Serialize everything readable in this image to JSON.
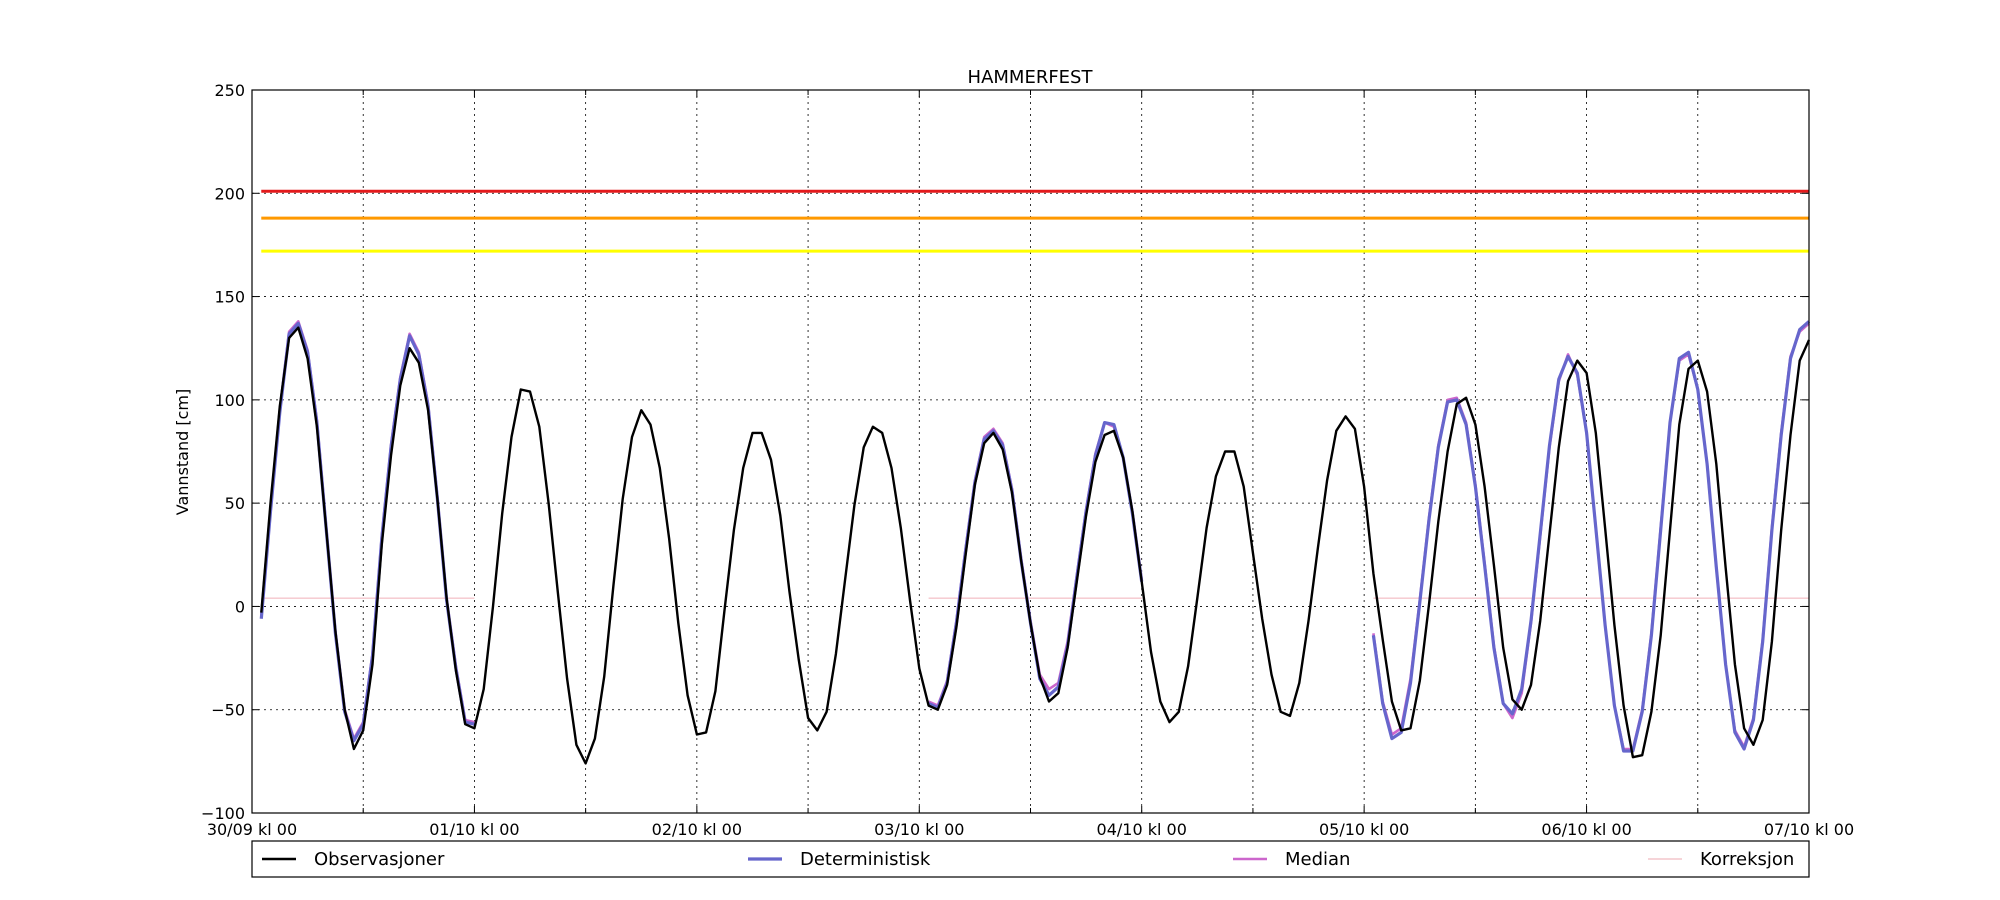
{
  "chart_data": {
    "type": "line",
    "title": "HAMMERFEST",
    "xlabel": "",
    "ylabel": "Vannstand [cm]",
    "x_unit": "hours since 30/09 kl 00",
    "xlim": [
      0,
      168
    ],
    "ylim": [
      -100,
      250
    ],
    "y_ticks": [
      -100,
      -50,
      0,
      50,
      100,
      150,
      200,
      250
    ],
    "x_ticks": [
      {
        "hour": 0,
        "label": "30/09 kl 00"
      },
      {
        "hour": 24,
        "label": "01/10 kl 00"
      },
      {
        "hour": 48,
        "label": "02/10 kl 00"
      },
      {
        "hour": 72,
        "label": "03/10 kl 00"
      },
      {
        "hour": 96,
        "label": "04/10 kl 00"
      },
      {
        "hour": 120,
        "label": "05/10 kl 00"
      },
      {
        "hour": 144,
        "label": "06/10 kl 00"
      },
      {
        "hour": 168,
        "label": "07/10 kl 00"
      }
    ],
    "x_minor_grid_hours": [
      12,
      36,
      60,
      84,
      108,
      132,
      156
    ],
    "grid": true,
    "legend_position": "below",
    "threshold_lines": [
      {
        "value": 201,
        "color": "#e31a1c"
      },
      {
        "value": 188,
        "color": "#ff9900"
      },
      {
        "value": 172,
        "color": "#ffff00"
      }
    ],
    "series": [
      {
        "name": "Observasjoner",
        "color": "#000000",
        "x": [
          1,
          2,
          3,
          4,
          5,
          6,
          7,
          8,
          9,
          10,
          11,
          12,
          13,
          14,
          15,
          16,
          17,
          18,
          19,
          20,
          21,
          22,
          23,
          24,
          25,
          26,
          27,
          28,
          29,
          30,
          31,
          32,
          33,
          34,
          35,
          36,
          37,
          38,
          39,
          40,
          41,
          42,
          43,
          44,
          45,
          46,
          47,
          48,
          49,
          50,
          51,
          52,
          53,
          54,
          55,
          56,
          57,
          58,
          59,
          60,
          61,
          62,
          63,
          64,
          65,
          66,
          67,
          68,
          69,
          70,
          71,
          72,
          73,
          74,
          75,
          76,
          77,
          78,
          79,
          80,
          81,
          82,
          83,
          84,
          85,
          86,
          87,
          88,
          89,
          90,
          91,
          92,
          93,
          94,
          95,
          96,
          97,
          98,
          99,
          100,
          101,
          102,
          103,
          104,
          105,
          106,
          107,
          108,
          109,
          110,
          111,
          112,
          113,
          114,
          115,
          116,
          117,
          118,
          119,
          120,
          121,
          122,
          123,
          124,
          125,
          126,
          127,
          128,
          129,
          130,
          131,
          132,
          133,
          134,
          135,
          136,
          137,
          138,
          139,
          140,
          141,
          142,
          143,
          144,
          145,
          146,
          147,
          148,
          149,
          150,
          151,
          152,
          153,
          154,
          155,
          156,
          157,
          158,
          159,
          160,
          161,
          162,
          163,
          164,
          165,
          166,
          167,
          168
        ],
        "values": [
          -3,
          50,
          97,
          130,
          135,
          120,
          87,
          38,
          -12,
          -50,
          -69,
          -60,
          -28,
          30,
          73,
          107,
          125,
          118,
          95,
          52,
          4,
          -31,
          -57,
          -59,
          -40,
          0,
          45,
          82,
          105,
          104,
          87,
          50,
          7,
          -35,
          -67,
          -76,
          -64,
          -34,
          10,
          52,
          82,
          95,
          88,
          67,
          33,
          -8,
          -43,
          -62,
          -61,
          -41,
          -1,
          37,
          67,
          84,
          84,
          71,
          44,
          7,
          -26,
          -54,
          -60,
          -51,
          -23,
          13,
          49,
          77,
          87,
          84,
          67,
          38,
          3,
          -30,
          -48,
          -50,
          -38,
          -10,
          25,
          59,
          79,
          84,
          76,
          55,
          22,
          -8,
          -34,
          -46,
          -42,
          -20,
          12,
          44,
          70,
          83,
          85,
          72,
          46,
          12,
          -22,
          -46,
          -56,
          -51,
          -29,
          4,
          38,
          63,
          75,
          75,
          58,
          26,
          -6,
          -33,
          -51,
          -53,
          -37,
          -7,
          28,
          61,
          85,
          92,
          86,
          58,
          16,
          -16,
          -46,
          -60,
          -59,
          -36,
          1,
          41,
          75,
          98,
          101,
          88,
          58,
          20,
          -20,
          -45,
          -50,
          -38,
          -7,
          35,
          77,
          109,
          119,
          113,
          84,
          38,
          -9,
          -48,
          -73,
          -72,
          -51,
          -14,
          37,
          88,
          115,
          119,
          104,
          69,
          19,
          -28,
          -59,
          -67,
          -55,
          -17,
          37,
          83,
          119,
          129
        ]
      },
      {
        "name": "Deterministisk",
        "color": "#6666cc",
        "segments": [
          {
            "x": [
              1,
              2,
              3,
              4,
              5,
              6,
              7,
              8,
              9,
              10,
              11,
              12,
              13,
              14,
              15,
              16,
              17,
              18,
              19,
              20,
              21,
              22,
              23,
              24
            ],
            "values": [
              -6,
              46,
              94,
              132,
              137,
              123,
              89,
              38,
              -13,
              -51,
              -65,
              -57,
              -24,
              33,
              77,
              110,
              131,
              122,
              97,
              52,
              3,
              -30,
              -56,
              -57
            ]
          },
          {
            "x": [
              73,
              74,
              75,
              76,
              77,
              78,
              79,
              80,
              81,
              82,
              83,
              84,
              85,
              86,
              87,
              88,
              89,
              90,
              91,
              92,
              93,
              94,
              95,
              96
            ],
            "values": [
              -47,
              -49,
              -37,
              -8,
              27,
              60,
              81,
              85,
              78,
              56,
              22,
              -8,
              -35,
              -43,
              -39,
              -19,
              14,
              46,
              73,
              89,
              88,
              72,
              45,
              12
            ]
          },
          {
            "x": [
              121,
              122,
              123,
              124,
              125,
              126,
              127,
              128,
              129,
              130,
              131,
              132,
              133,
              134,
              135,
              136,
              137,
              138,
              139,
              140,
              141,
              142,
              143,
              144,
              145,
              146,
              147,
              148,
              149,
              150,
              151,
              152,
              153,
              154,
              155,
              156,
              157,
              158,
              159,
              160,
              161,
              162,
              163,
              164,
              165,
              166,
              167,
              168
            ],
            "values": [
              -14,
              -47,
              -64,
              -61,
              -37,
              2,
              42,
              77,
              99,
              100,
              88,
              58,
              20,
              -20,
              -47,
              -52,
              -40,
              -7,
              35,
              78,
              110,
              121,
              113,
              84,
              38,
              -9,
              -48,
              -70,
              -70,
              -51,
              -14,
              37,
              89,
              120,
              123,
              105,
              69,
              19,
              -28,
              -61,
              -69,
              -55,
              -17,
              37,
              83,
              120,
              134,
              138
            ]
          }
        ]
      },
      {
        "name": "Median",
        "color": "#cc66cc",
        "segments": [
          {
            "x": [
              1,
              2,
              3,
              4,
              5,
              6,
              7,
              8,
              9,
              10,
              11,
              12,
              13,
              14,
              15,
              16,
              17,
              18,
              19,
              20,
              21,
              22,
              23,
              24
            ],
            "values": [
              -5,
              47,
              95,
              133,
              138,
              124,
              90,
              39,
              -12,
              -50,
              -64,
              -56,
              -23,
              34,
              78,
              111,
              132,
              123,
              98,
              53,
              4,
              -29,
              -55,
              -56
            ]
          },
          {
            "x": [
              73,
              74,
              75,
              76,
              77,
              78,
              79,
              80,
              81,
              82,
              83,
              84,
              85,
              86,
              87,
              88,
              89,
              90,
              91,
              92,
              93,
              94,
              95,
              96
            ],
            "values": [
              -46,
              -48,
              -36,
              -7,
              28,
              61,
              82,
              86,
              79,
              57,
              23,
              -7,
              -33,
              -40,
              -37,
              -17,
              15,
              47,
              74,
              89,
              87,
              72,
              46,
              13
            ]
          },
          {
            "x": [
              121,
              122,
              123,
              124,
              125,
              126,
              127,
              128,
              129,
              130,
              131,
              132,
              133,
              134,
              135,
              136,
              137,
              138,
              139,
              140,
              141,
              142,
              143,
              144,
              145,
              146,
              147,
              148,
              149,
              150,
              151,
              152,
              153,
              154,
              155,
              156,
              157,
              158,
              159,
              160,
              161,
              162,
              163,
              164,
              165,
              166,
              167,
              168
            ],
            "values": [
              -13,
              -46,
              -62,
              -59,
              -35,
              3,
              43,
              78,
              100,
              101,
              89,
              59,
              21,
              -19,
              -47,
              -54,
              -42,
              -8,
              34,
              77,
              109,
              122,
              112,
              84,
              38,
              -9,
              -48,
              -69,
              -69,
              -50,
              -13,
              38,
              89,
              119,
              122,
              105,
              69,
              19,
              -28,
              -60,
              -68,
              -54,
              -16,
              38,
              84,
              121,
              133,
              137
            ]
          }
        ]
      },
      {
        "name": "Korreksjon",
        "color": "#f4c6cc",
        "segments": [
          {
            "x": [
              1,
              24
            ],
            "values": [
              4,
              4
            ]
          },
          {
            "x": [
              73,
              96
            ],
            "values": [
              4,
              4
            ]
          },
          {
            "x": [
              121,
              168
            ],
            "values": [
              4,
              4
            ]
          }
        ]
      }
    ]
  }
}
